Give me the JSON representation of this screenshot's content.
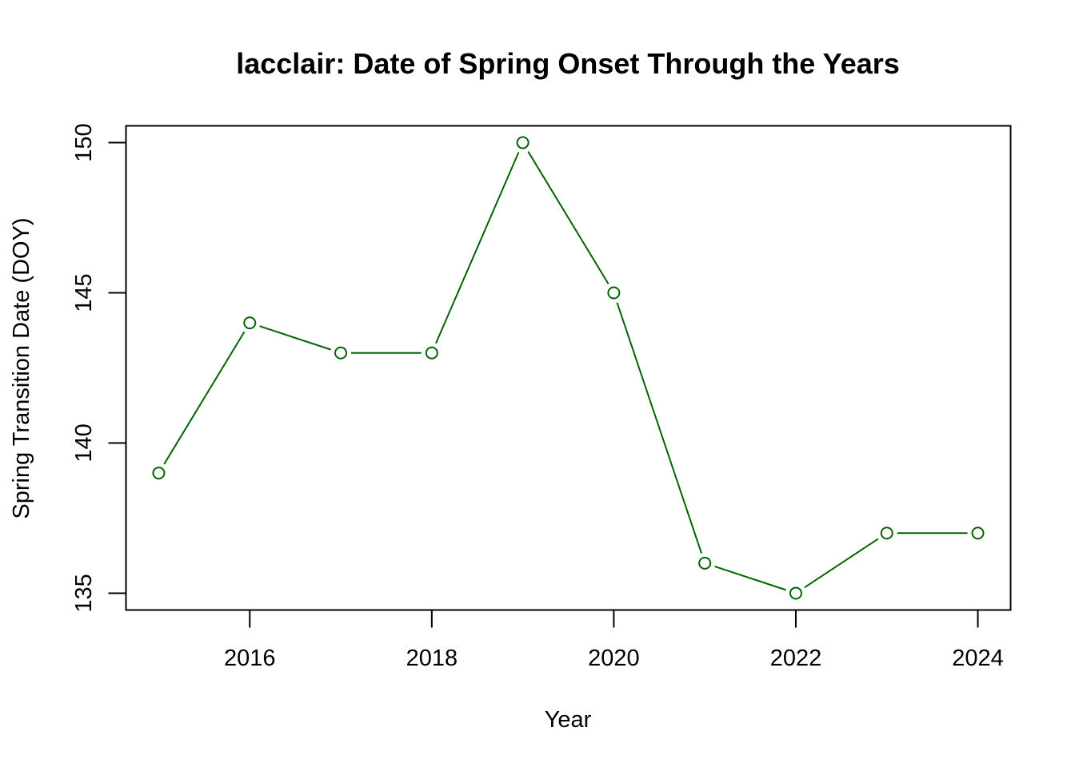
{
  "chart_data": {
    "type": "line",
    "title": "lacclair: Date of Spring Onset Through the Years",
    "xlabel": "Year",
    "ylabel": "Spring Transition Date (DOY)",
    "x": [
      2015,
      2016,
      2017,
      2018,
      2019,
      2020,
      2021,
      2022,
      2023,
      2024
    ],
    "series": [
      {
        "values": [
          139,
          144,
          143,
          143,
          150,
          145,
          136,
          135,
          137,
          137
        ]
      }
    ],
    "xticks": [
      2016,
      2018,
      2020,
      2022,
      2024
    ],
    "yticks": [
      135,
      140,
      145,
      150
    ],
    "xlim": [
      2014.64,
      2024.36
    ],
    "ylim": [
      134.44,
      150.56
    ],
    "grid": false,
    "marker": "open-circle",
    "line_color": "#006400"
  }
}
